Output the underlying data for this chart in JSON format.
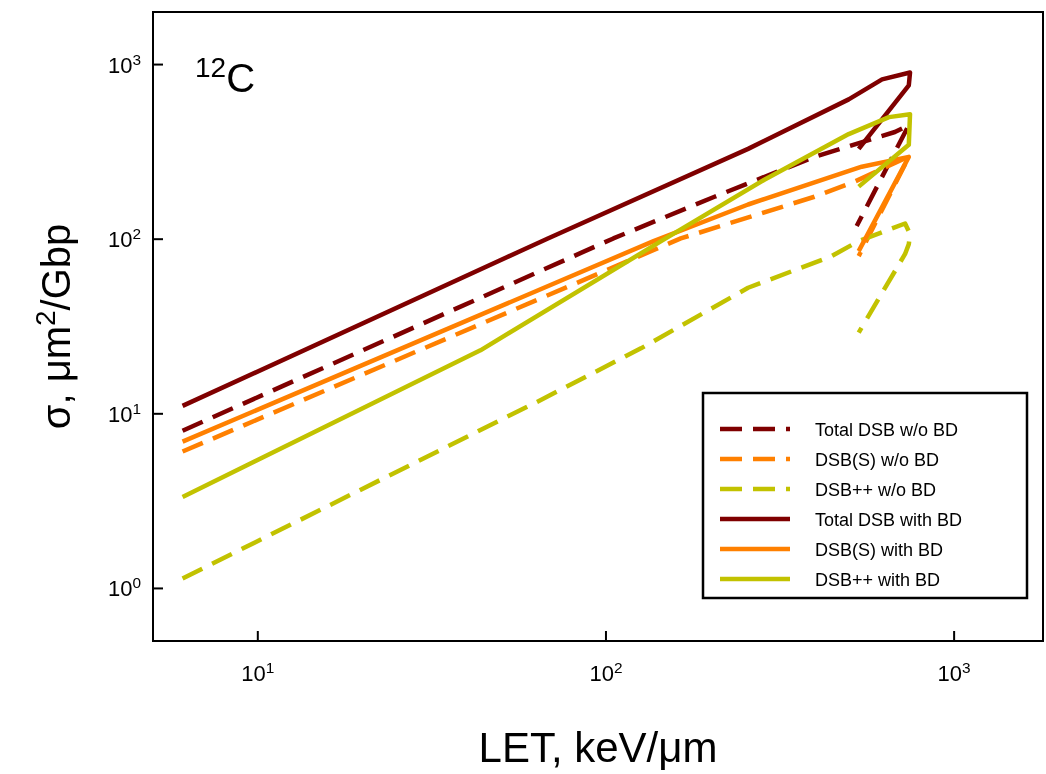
{
  "chart_data": {
    "type": "line",
    "xlabel": "LET, keV/μm",
    "ylabel": "σ, μm$^{2}$/Gbp",
    "log": "xy",
    "xlim": [
      5,
      1800
    ],
    "ylim": [
      0.5,
      2000
    ],
    "xticks": [
      {
        "value": 10,
        "label": "10$^{1}$"
      },
      {
        "value": 100,
        "label": "10$^{2}$"
      },
      {
        "value": 1000,
        "label": "10$^{3}$"
      }
    ],
    "yticks": [
      {
        "value": 1,
        "label": "10$^{0}$"
      },
      {
        "value": 10,
        "label": "10$^{1}$"
      },
      {
        "value": 100,
        "label": "10$^{2}$"
      },
      {
        "value": 1000,
        "label": "10$^{3}$"
      }
    ],
    "annotations": [
      "$^{12}$C"
    ],
    "legend": "bottom right",
    "grid": false,
    "series": [
      {
        "name": "Total DSB w/o BD",
        "color": "#7f0000",
        "line_style": "dashed",
        "x": [
          6.08,
          105,
          205,
          397,
          676,
          741,
          525
        ],
        "values": [
          8.0,
          101,
          175,
          296,
          411,
          450,
          119
        ]
      },
      {
        "name": "DSB(S) w/o BD",
        "color": "#ff8000",
        "line_style": "dashed",
        "x": [
          6.08,
          164,
          397,
          519,
          708,
          741,
          532
        ],
        "values": [
          6.08,
          101,
          175,
          214,
          285,
          296,
          80
        ]
      },
      {
        "name": "DSB++ w/o BD",
        "color": "#c2c200",
        "line_style": "dashed",
        "x": [
          6.08,
          65,
          126,
          256,
          445,
          532,
          723,
          747,
          741,
          723,
          532
        ],
        "values": [
          1.14,
          12.0,
          23.7,
          52.7,
          80,
          97.5,
          123,
          107,
          93.7,
          82.3,
          29.2
        ]
      },
      {
        "name": "Total DSB with BD",
        "color": "#7f0000",
        "line_style": "solid",
        "x": [
          6.08,
          68.1,
          256,
          498,
          621,
          747,
          741,
          532
        ],
        "values": [
          11.1,
          101,
          329,
          632,
          822,
          901,
          760,
          329
        ]
      },
      {
        "name": "DSB(S) with BD",
        "color": "#ff8000",
        "line_style": "solid",
        "x": [
          6.08,
          137,
          256,
          543,
          741,
          741,
          532
        ],
        "values": [
          6.93,
          97.5,
          158,
          260,
          296,
          296,
          85.5
        ]
      },
      {
        "name": "DSB++ with BD",
        "color": "#c2c200",
        "line_style": "solid",
        "x": [
          6.08,
          43.6,
          144,
          285,
          498,
          650,
          747,
          741,
          532
        ],
        "values": [
          3.34,
          23.1,
          97.5,
          219,
          400,
          500,
          520,
          347,
          200
        ]
      }
    ]
  }
}
